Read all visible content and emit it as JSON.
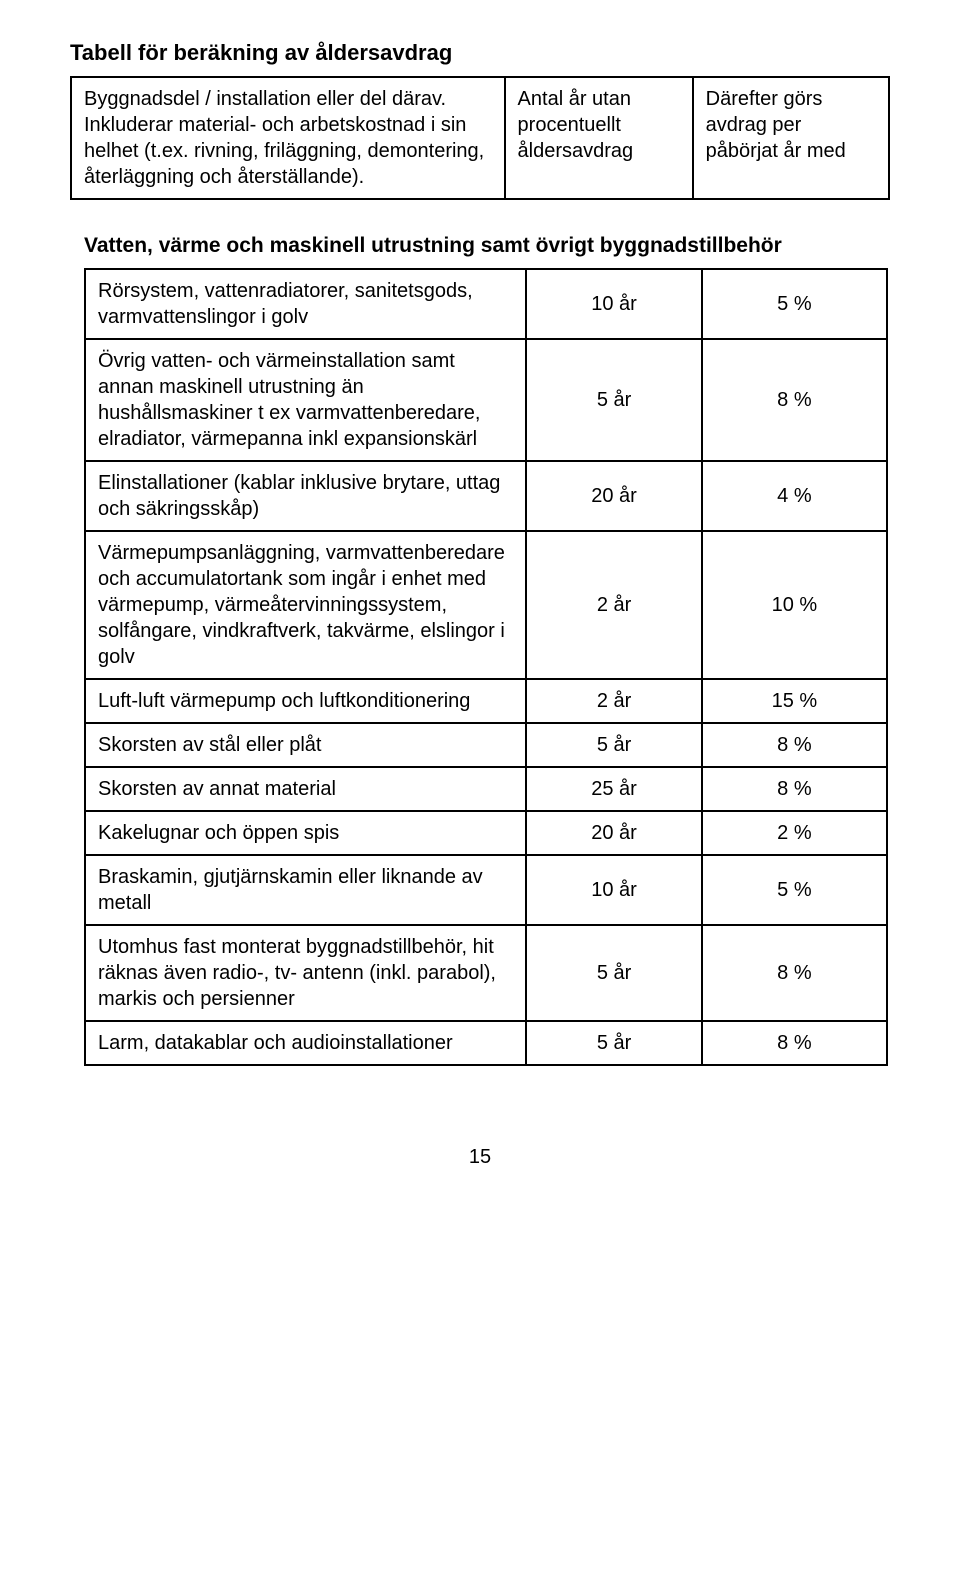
{
  "title": "Tabell för beräkning av åldersavdrag",
  "header": {
    "col1": "Byggnadsdel / installation eller del därav. Inkluderar material- och arbetskostnad i sin helhet (t.ex. rivning, friläggning, demontering, återläggning och återställande).",
    "col2": "Antal år utan procentuellt åldersavdrag",
    "col3": "Därefter görs avdrag per påbörjat år med"
  },
  "section_title": "Vatten, värme och maskinell utrustning samt övrigt byggnadstillbehör",
  "rows": [
    {
      "desc": "Rörsystem, vattenradiatorer, sanitetsgods, varmvattenslingor i golv",
      "years": "10 år",
      "pct": "5 %"
    },
    {
      "desc": "Övrig vatten- och värmeinstallation samt annan maskinell utrustning än hushållsmaskiner t ex varmvattenberedare, elradiator, värmepanna inkl expansionskärl",
      "years": "5 år",
      "pct": "8 %"
    },
    {
      "desc": "Elinstallationer (kablar inklusive brytare, uttag och säkringsskåp)",
      "years": "20 år",
      "pct": "4 %"
    },
    {
      "desc": "Värmepumpsanläggning, varmvattenberedare och accumulatortank som ingår i enhet med värmepump, värmeåtervinningssystem, solfångare, vindkraftverk, takvärme, elslingor i golv",
      "years": "2 år",
      "pct": "10 %"
    },
    {
      "desc": "Luft-luft värmepump och luftkonditionering",
      "years": "2 år",
      "pct": "15 %"
    },
    {
      "desc": "Skorsten av stål eller plåt",
      "years": "5 år",
      "pct": "8 %"
    },
    {
      "desc": "Skorsten av annat material",
      "years": "25 år",
      "pct": "8 %"
    },
    {
      "desc": "Kakelugnar och öppen spis",
      "years": "20 år",
      "pct": "2 %"
    },
    {
      "desc": "Braskamin, gjutjärnskamin eller liknande av metall",
      "years": "10 år",
      "pct": "5 %"
    },
    {
      "desc": "Utomhus fast monterat byggnadstillbehör, hit räknas även radio-, tv- antenn (inkl. parabol), markis och persienner",
      "years": "5 år",
      "pct": "8 %"
    },
    {
      "desc": "Larm, datakablar och audioinstallationer",
      "years": "5 år",
      "pct": "8 %"
    }
  ],
  "page_number": "15",
  "styling": {
    "font_family": "Arial",
    "title_fontsize": 22,
    "body_fontsize": 20,
    "text_color": "#000000",
    "background_color": "#ffffff",
    "border_color": "#000000",
    "border_width": 2
  }
}
